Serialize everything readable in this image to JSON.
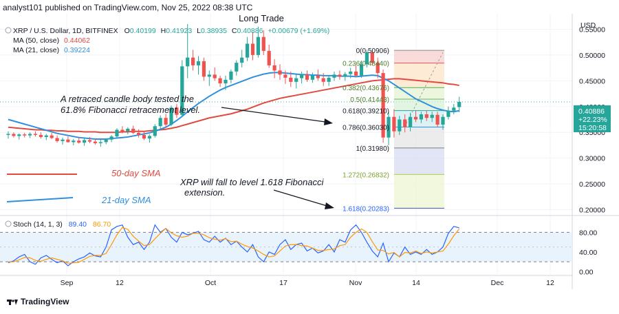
{
  "header": {
    "publisher": "analyst101 published on TradingView.com, Nov 25, 2022 08:38 UTC",
    "overlay_title": "Long Trade"
  },
  "legend": {
    "symbol_line": "XRP / U.S. Dollar, 1D, BITFINEX",
    "o_label": "O",
    "o_value": "0.40199",
    "h_label": "H",
    "h_value": "0.41923",
    "l_label": "L",
    "l_value": "0.38935",
    "c_label": "C",
    "c_value": "0.40886",
    "change": "+0.00679 (+1.69%)",
    "ma50_label": "MA (50, close)",
    "ma50_value": "0.44062",
    "ma21_label": "MA (21, close)",
    "ma21_value": "0.39224"
  },
  "price_axis": {
    "currency": "USD",
    "last_price": "0.40886",
    "last_change": "+22.23%",
    "countdown": "15:20:58"
  },
  "annotations": {
    "retrace_text_1": "A retraced candle body tested the",
    "retrace_text_2": "61.8% Fibonacci retracement level.",
    "sma50_label": "50-day SMA",
    "sma21_label": "21-day SMA",
    "forecast_text_1": "XRP will fall to level 1.618 Fibonacci",
    "forecast_text_2": "extension."
  },
  "fibonacci": [
    {
      "label": "0(0.50906)",
      "level": 0.50906
    },
    {
      "label": "0.236(0.48440)",
      "level": 0.4844
    },
    {
      "label": "0.382(0.43676)",
      "level": 0.43676
    },
    {
      "label": "0.5(0.41443)",
      "level": 0.41443
    },
    {
      "label": "0.618(0.39210)",
      "level": 0.3921
    },
    {
      "label": "0.786(0.36030)",
      "level": 0.3603
    },
    {
      "label": "1(0.31980)",
      "level": 0.3198
    },
    {
      "label": "1.272(0.26832)",
      "level": 0.26832
    },
    {
      "label": "1.618(0.20283)",
      "level": 0.20283
    }
  ],
  "stoch": {
    "label": "Stoch (14, 1, 3)",
    "k_value": "89.40",
    "d_value": "86.70"
  },
  "footer": {
    "brand": "TradingView"
  },
  "colors": {
    "up": "#26a69a",
    "down": "#ef5350",
    "ma50": "#e04a3f",
    "ma21": "#2f8fdc",
    "stoch_k": "#2962ff",
    "stoch_d": "#ff9800"
  },
  "chart_data": [
    {
      "type": "candlestick",
      "title": "XRP / U.S. Dollar, 1D, BITFINEX",
      "x_tick_labels": [
        "Sep",
        "12",
        "Oct",
        "17",
        "Nov",
        "14",
        "Dec",
        "12"
      ],
      "y_tick_labels": [
        "0.55000",
        "0.50000",
        "0.45000",
        "0.40000",
        "0.35000",
        "0.30000",
        "0.25000",
        "0.20000"
      ],
      "ylim": [
        0.19,
        0.58
      ],
      "candles": [
        [
          0.345,
          0.352,
          0.338,
          0.347
        ],
        [
          0.347,
          0.35,
          0.34,
          0.343
        ],
        [
          0.343,
          0.348,
          0.336,
          0.346
        ],
        [
          0.346,
          0.349,
          0.34,
          0.344
        ],
        [
          0.344,
          0.35,
          0.339,
          0.347
        ],
        [
          0.347,
          0.352,
          0.342,
          0.345
        ],
        [
          0.345,
          0.35,
          0.338,
          0.341
        ],
        [
          0.341,
          0.347,
          0.335,
          0.344
        ],
        [
          0.344,
          0.349,
          0.337,
          0.339
        ],
        [
          0.339,
          0.344,
          0.33,
          0.333
        ],
        [
          0.333,
          0.34,
          0.326,
          0.336
        ],
        [
          0.336,
          0.342,
          0.33,
          0.331
        ],
        [
          0.331,
          0.337,
          0.325,
          0.334
        ],
        [
          0.334,
          0.34,
          0.328,
          0.33
        ],
        [
          0.33,
          0.338,
          0.324,
          0.335
        ],
        [
          0.335,
          0.341,
          0.329,
          0.332
        ],
        [
          0.332,
          0.337,
          0.326,
          0.329
        ],
        [
          0.329,
          0.336,
          0.322,
          0.331
        ],
        [
          0.331,
          0.338,
          0.327,
          0.336
        ],
        [
          0.336,
          0.345,
          0.331,
          0.342
        ],
        [
          0.342,
          0.358,
          0.338,
          0.355
        ],
        [
          0.355,
          0.362,
          0.348,
          0.352
        ],
        [
          0.352,
          0.36,
          0.346,
          0.357
        ],
        [
          0.357,
          0.363,
          0.347,
          0.349
        ],
        [
          0.349,
          0.356,
          0.34,
          0.345
        ],
        [
          0.345,
          0.352,
          0.335,
          0.338
        ],
        [
          0.338,
          0.346,
          0.33,
          0.343
        ],
        [
          0.343,
          0.366,
          0.34,
          0.362
        ],
        [
          0.362,
          0.383,
          0.357,
          0.378
        ],
        [
          0.378,
          0.386,
          0.36,
          0.365
        ],
        [
          0.365,
          0.402,
          0.362,
          0.398
        ],
        [
          0.398,
          0.405,
          0.378,
          0.384
        ],
        [
          0.384,
          0.49,
          0.382,
          0.478
        ],
        [
          0.478,
          0.56,
          0.455,
          0.495
        ],
        [
          0.495,
          0.51,
          0.47,
          0.48
        ],
        [
          0.48,
          0.498,
          0.462,
          0.488
        ],
        [
          0.488,
          0.495,
          0.45,
          0.458
        ],
        [
          0.458,
          0.47,
          0.44,
          0.462
        ],
        [
          0.462,
          0.476,
          0.45,
          0.455
        ],
        [
          0.455,
          0.46,
          0.438,
          0.445
        ],
        [
          0.445,
          0.46,
          0.432,
          0.452
        ],
        [
          0.452,
          0.472,
          0.445,
          0.468
        ],
        [
          0.468,
          0.49,
          0.46,
          0.485
        ],
        [
          0.485,
          0.51,
          0.476,
          0.495
        ],
        [
          0.495,
          0.535,
          0.488,
          0.522
        ],
        [
          0.522,
          0.545,
          0.49,
          0.5
        ],
        [
          0.5,
          0.555,
          0.495,
          0.535
        ],
        [
          0.535,
          0.548,
          0.5,
          0.508
        ],
        [
          0.508,
          0.52,
          0.475,
          0.48
        ],
        [
          0.48,
          0.492,
          0.455,
          0.47
        ],
        [
          0.47,
          0.482,
          0.452,
          0.462
        ],
        [
          0.462,
          0.47,
          0.444,
          0.456
        ],
        [
          0.456,
          0.468,
          0.438,
          0.448
        ],
        [
          0.448,
          0.462,
          0.435,
          0.455
        ],
        [
          0.455,
          0.468,
          0.445,
          0.462
        ],
        [
          0.462,
          0.47,
          0.448,
          0.452
        ],
        [
          0.452,
          0.466,
          0.446,
          0.46
        ],
        [
          0.46,
          0.472,
          0.45,
          0.455
        ],
        [
          0.455,
          0.465,
          0.44,
          0.448
        ],
        [
          0.448,
          0.46,
          0.44,
          0.456
        ],
        [
          0.456,
          0.468,
          0.45,
          0.462
        ],
        [
          0.462,
          0.47,
          0.452,
          0.458
        ],
        [
          0.458,
          0.467,
          0.45,
          0.463
        ],
        [
          0.463,
          0.475,
          0.455,
          0.468
        ],
        [
          0.468,
          0.48,
          0.458,
          0.46
        ],
        [
          0.46,
          0.488,
          0.456,
          0.482
        ],
        [
          0.482,
          0.51,
          0.476,
          0.505
        ],
        [
          0.505,
          0.51,
          0.48,
          0.485
        ],
        [
          0.485,
          0.495,
          0.455,
          0.465
        ],
        [
          0.465,
          0.472,
          0.33,
          0.34
        ],
        [
          0.34,
          0.39,
          0.325,
          0.38
        ],
        [
          0.38,
          0.395,
          0.34,
          0.352
        ],
        [
          0.352,
          0.382,
          0.345,
          0.375
        ],
        [
          0.375,
          0.385,
          0.35,
          0.36
        ],
        [
          0.36,
          0.388,
          0.352,
          0.38
        ],
        [
          0.38,
          0.392,
          0.37,
          0.375
        ],
        [
          0.375,
          0.39,
          0.368,
          0.385
        ],
        [
          0.385,
          0.392,
          0.372,
          0.378
        ],
        [
          0.378,
          0.39,
          0.37,
          0.384
        ],
        [
          0.384,
          0.39,
          0.36,
          0.365
        ],
        [
          0.365,
          0.385,
          0.355,
          0.38
        ],
        [
          0.38,
          0.4,
          0.375,
          0.392
        ],
        [
          0.392,
          0.405,
          0.385,
          0.398
        ],
        [
          0.399,
          0.419,
          0.389,
          0.409
        ]
      ],
      "series": [
        {
          "name": "MA (50, close)",
          "values": [
            0.36,
            0.359,
            0.358,
            0.357,
            0.356,
            0.355,
            0.355,
            0.354,
            0.354,
            0.353,
            0.353,
            0.352,
            0.352,
            0.352,
            0.351,
            0.351,
            0.351,
            0.35,
            0.35,
            0.35,
            0.35,
            0.351,
            0.351,
            0.352,
            0.352,
            0.352,
            0.353,
            0.354,
            0.355,
            0.356,
            0.358,
            0.36,
            0.363,
            0.366,
            0.369,
            0.372,
            0.375,
            0.378,
            0.38,
            0.382,
            0.384,
            0.386,
            0.389,
            0.392,
            0.395,
            0.399,
            0.403,
            0.407,
            0.41,
            0.413,
            0.416,
            0.418,
            0.42,
            0.422,
            0.424,
            0.426,
            0.428,
            0.43,
            0.432,
            0.434,
            0.436,
            0.438,
            0.44,
            0.442,
            0.444,
            0.446,
            0.448,
            0.45,
            0.451,
            0.452,
            0.453,
            0.454,
            0.454,
            0.453,
            0.452,
            0.451,
            0.45,
            0.449,
            0.448,
            0.447,
            0.446,
            0.444,
            0.443,
            0.441
          ]
        },
        {
          "name": "MA (21, close)",
          "values": [
            0.375,
            0.372,
            0.369,
            0.366,
            0.363,
            0.36,
            0.357,
            0.354,
            0.351,
            0.348,
            0.346,
            0.344,
            0.342,
            0.34,
            0.339,
            0.338,
            0.337,
            0.337,
            0.337,
            0.338,
            0.339,
            0.34,
            0.341,
            0.343,
            0.345,
            0.347,
            0.349,
            0.352,
            0.356,
            0.36,
            0.366,
            0.373,
            0.381,
            0.39,
            0.398,
            0.406,
            0.413,
            0.42,
            0.426,
            0.432,
            0.437,
            0.441,
            0.445,
            0.449,
            0.453,
            0.457,
            0.46,
            0.463,
            0.465,
            0.466,
            0.466,
            0.465,
            0.464,
            0.463,
            0.462,
            0.462,
            0.461,
            0.461,
            0.46,
            0.46,
            0.46,
            0.459,
            0.459,
            0.459,
            0.458,
            0.459,
            0.46,
            0.461,
            0.46,
            0.455,
            0.45,
            0.443,
            0.436,
            0.429,
            0.422,
            0.415,
            0.41,
            0.405,
            0.4,
            0.396,
            0.393,
            0.391,
            0.39,
            0.392
          ]
        }
      ]
    },
    {
      "type": "line",
      "title": "Stoch (14, 1, 3)",
      "y_tick_labels": [
        "80.00",
        "40.00",
        "0.00"
      ],
      "ylim": [
        -5,
        110
      ],
      "bands": [
        20,
        80
      ],
      "series": [
        {
          "name": "%K",
          "values": [
            18,
            22,
            30,
            35,
            20,
            15,
            28,
            33,
            25,
            18,
            22,
            12,
            20,
            26,
            30,
            38,
            32,
            30,
            50,
            85,
            92,
            95,
            70,
            55,
            60,
            45,
            60,
            95,
            80,
            88,
            70,
            60,
            80,
            75,
            78,
            82,
            65,
            60,
            72,
            60,
            68,
            55,
            62,
            50,
            40,
            55,
            30,
            20,
            40,
            35,
            55,
            65,
            45,
            55,
            58,
            42,
            48,
            38,
            42,
            55,
            40,
            65,
            60,
            85,
            95,
            80,
            60,
            42,
            30,
            58,
            20,
            38,
            30,
            50,
            35,
            40,
            35,
            45,
            35,
            40,
            50,
            78,
            92,
            89
          ]
        },
        {
          "name": "%D",
          "values": [
            20,
            20,
            24,
            29,
            28,
            23,
            21,
            25,
            28,
            25,
            22,
            17,
            18,
            19,
            25,
            31,
            33,
            33,
            37,
            55,
            75,
            90,
            86,
            72,
            62,
            53,
            55,
            67,
            78,
            88,
            79,
            73,
            70,
            72,
            78,
            78,
            75,
            69,
            66,
            64,
            67,
            61,
            62,
            56,
            51,
            48,
            42,
            35,
            30,
            32,
            42,
            52,
            55,
            55,
            53,
            52,
            48,
            43,
            43,
            45,
            46,
            53,
            55,
            70,
            80,
            87,
            80,
            61,
            44,
            43,
            36,
            39,
            30,
            39,
            38,
            42,
            37,
            40,
            38,
            40,
            42,
            56,
            73,
            87
          ]
        }
      ]
    }
  ]
}
